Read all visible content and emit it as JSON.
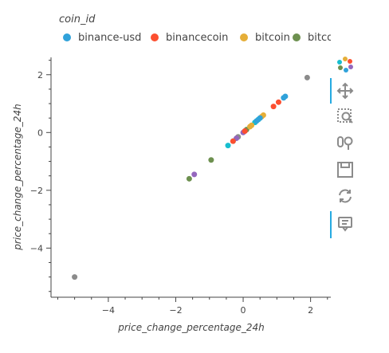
{
  "chart_data": {
    "type": "scatter",
    "xlabel": "price_change_percentage_24h",
    "ylabel": "price_change_percentage_24h",
    "xlim": [
      -5.7,
      2.6
    ],
    "ylim": [
      -5.7,
      2.6
    ],
    "x_ticks": [
      -4,
      -2,
      0,
      2
    ],
    "y_ticks": [
      2,
      0,
      -2,
      -4
    ],
    "x_tick_labels": [
      "−4",
      "−2",
      "0",
      "2"
    ],
    "y_tick_labels": [
      "2",
      "0",
      "−2",
      "−4"
    ],
    "legend": {
      "title": "coin_id",
      "placement": "top",
      "entries": [
        {
          "name": "binance-usd",
          "color": "#30a2da"
        },
        {
          "name": "binancecoin",
          "color": "#fc4f30"
        },
        {
          "name": "bitcoin",
          "color": "#e5ae38"
        },
        {
          "name": "bitcoin-ca",
          "color": "#6d904f"
        }
      ]
    },
    "series": [
      {
        "color": "#8b8b8b",
        "points": [
          [
            -5.0,
            -5.0
          ],
          [
            1.9,
            1.9
          ],
          [
            -0.15,
            -0.15
          ],
          [
            0.05,
            0.05
          ]
        ]
      },
      {
        "color": "#6d904f",
        "points": [
          [
            -1.6,
            -1.6
          ],
          [
            -0.95,
            -0.95
          ],
          [
            0.1,
            0.1
          ]
        ]
      },
      {
        "color": "#9467bd",
        "points": [
          [
            -1.45,
            -1.45
          ],
          [
            -0.2,
            -0.2
          ],
          [
            0.0,
            0.0
          ]
        ]
      },
      {
        "color": "#17becf",
        "points": [
          [
            -0.45,
            -0.45
          ],
          [
            -0.3,
            -0.3
          ],
          [
            0.35,
            0.35
          ],
          [
            0.45,
            0.45
          ]
        ]
      },
      {
        "color": "#fc4f30",
        "points": [
          [
            -0.3,
            -0.3
          ],
          [
            0.05,
            0.05
          ],
          [
            0.9,
            0.9
          ],
          [
            1.05,
            1.05
          ]
        ]
      },
      {
        "color": "#e5ae38",
        "points": [
          [
            0.25,
            0.25
          ],
          [
            0.55,
            0.55
          ],
          [
            0.6,
            0.6
          ],
          [
            0.2,
            0.2
          ]
        ]
      },
      {
        "color": "#30a2da",
        "points": [
          [
            0.5,
            0.5
          ],
          [
            0.4,
            0.4
          ],
          [
            1.2,
            1.2
          ],
          [
            1.25,
            1.25
          ]
        ]
      }
    ]
  },
  "toolbar": {
    "tools": [
      {
        "name": "bokeh-logo-icon",
        "active": false
      },
      {
        "name": "pan-icon",
        "active": true
      },
      {
        "name": "box-zoom-icon",
        "active": false
      },
      {
        "name": "wheel-zoom-icon",
        "active": false
      },
      {
        "name": "save-icon",
        "active": false
      },
      {
        "name": "reset-icon",
        "active": false
      },
      {
        "name": "hover-icon",
        "active": true
      }
    ]
  }
}
